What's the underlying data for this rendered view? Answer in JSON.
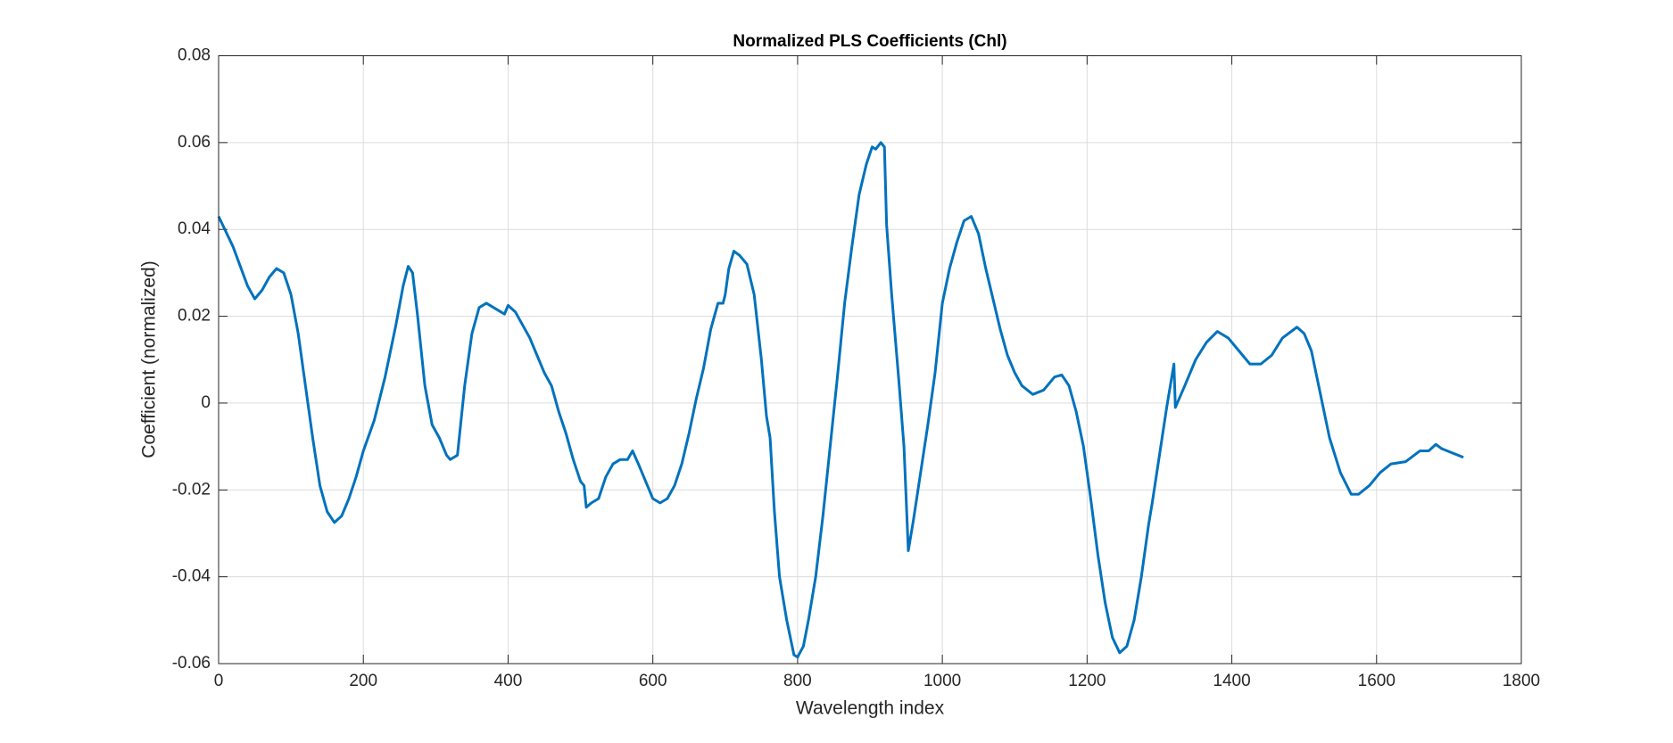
{
  "chart_data": {
    "type": "line",
    "title": "Normalized PLS Coefficients (Chl)",
    "x_label": "Wavelength index",
    "y_label": "Coefficient (normalized)",
    "x": [
      0,
      20,
      40,
      50,
      60,
      70,
      80,
      90,
      100,
      110,
      120,
      130,
      140,
      150,
      160,
      170,
      180,
      190,
      200,
      215,
      230,
      245,
      255,
      262,
      268,
      275,
      285,
      295,
      305,
      315,
      320,
      330,
      340,
      350,
      360,
      370,
      380,
      390,
      395,
      400,
      410,
      420,
      430,
      440,
      450,
      460,
      470,
      480,
      490,
      500,
      505,
      508,
      515,
      525,
      535,
      545,
      555,
      565,
      572,
      580,
      590,
      600,
      610,
      620,
      630,
      640,
      650,
      660,
      670,
      680,
      690,
      697,
      700,
      705,
      712,
      720,
      730,
      740,
      750,
      757,
      762,
      768,
      775,
      785,
      795,
      800,
      808,
      815,
      825,
      835,
      845,
      855,
      865,
      875,
      885,
      895,
      903,
      908,
      915,
      920,
      923,
      930,
      940,
      947,
      950,
      953,
      960,
      970,
      980,
      990,
      1000,
      1010,
      1020,
      1030,
      1040,
      1050,
      1060,
      1070,
      1080,
      1090,
      1100,
      1110,
      1125,
      1140,
      1155,
      1165,
      1175,
      1185,
      1195,
      1205,
      1215,
      1225,
      1235,
      1245,
      1255,
      1265,
      1275,
      1285,
      1290,
      1300,
      1310,
      1320,
      1322,
      1335,
      1350,
      1365,
      1380,
      1395,
      1410,
      1425,
      1440,
      1455,
      1470,
      1490,
      1500,
      1510,
      1520,
      1535,
      1550,
      1565,
      1575,
      1590,
      1605,
      1620,
      1640,
      1660,
      1672,
      1682,
      1690,
      1720
    ],
    "values": [
      0.043,
      0.036,
      0.027,
      0.024,
      0.026,
      0.029,
      0.031,
      0.03,
      0.025,
      0.016,
      0.004,
      -0.008,
      -0.019,
      -0.025,
      -0.0275,
      -0.026,
      -0.022,
      -0.017,
      -0.011,
      -0.004,
      0.006,
      0.018,
      0.027,
      0.0315,
      0.03,
      0.02,
      0.004,
      -0.005,
      -0.008,
      -0.012,
      -0.013,
      -0.012,
      0.004,
      0.016,
      0.022,
      0.023,
      0.022,
      0.021,
      0.0205,
      0.0225,
      0.021,
      0.018,
      0.015,
      0.011,
      0.007,
      0.004,
      -0.002,
      -0.007,
      -0.013,
      -0.018,
      -0.019,
      -0.024,
      -0.023,
      -0.022,
      -0.017,
      -0.014,
      -0.013,
      -0.013,
      -0.011,
      -0.014,
      -0.018,
      -0.022,
      -0.023,
      -0.022,
      -0.019,
      -0.014,
      -0.007,
      0.001,
      0.008,
      0.017,
      0.023,
      0.023,
      0.025,
      0.031,
      0.035,
      0.034,
      0.032,
      0.025,
      0.01,
      -0.003,
      -0.008,
      -0.025,
      -0.04,
      -0.05,
      -0.058,
      -0.0585,
      -0.056,
      -0.05,
      -0.04,
      -0.026,
      -0.01,
      0.006,
      0.023,
      0.036,
      0.048,
      0.055,
      0.059,
      0.0585,
      0.06,
      0.059,
      0.041,
      0.025,
      0.005,
      -0.01,
      -0.022,
      -0.034,
      -0.027,
      -0.016,
      -0.005,
      0.007,
      0.023,
      0.031,
      0.037,
      0.042,
      0.043,
      0.039,
      0.031,
      0.024,
      0.017,
      0.011,
      0.007,
      0.004,
      0.002,
      0.003,
      0.006,
      0.0065,
      0.004,
      -0.002,
      -0.01,
      -0.022,
      -0.035,
      -0.046,
      -0.054,
      -0.0575,
      -0.056,
      -0.05,
      -0.04,
      -0.028,
      -0.023,
      -0.012,
      -0.001,
      0.009,
      -0.001,
      0.004,
      0.01,
      0.014,
      0.0165,
      0.015,
      0.012,
      0.009,
      0.009,
      0.011,
      0.015,
      0.0175,
      0.016,
      0.012,
      0.004,
      -0.008,
      -0.016,
      -0.021,
      -0.021,
      -0.019,
      -0.016,
      -0.014,
      -0.0135,
      -0.011,
      -0.011,
      -0.0095,
      -0.0105,
      -0.0125
    ],
    "color": "#0072BD",
    "xlim": [
      0,
      1800
    ],
    "xticks": [
      0,
      200,
      400,
      600,
      800,
      1000,
      1200,
      1400,
      1600,
      1800
    ],
    "ylim": [
      -0.06,
      0.08
    ],
    "yticks": [
      -0.06,
      -0.04,
      -0.02,
      0,
      0.02,
      0.04,
      0.06,
      0.08
    ],
    "grid": true
  }
}
